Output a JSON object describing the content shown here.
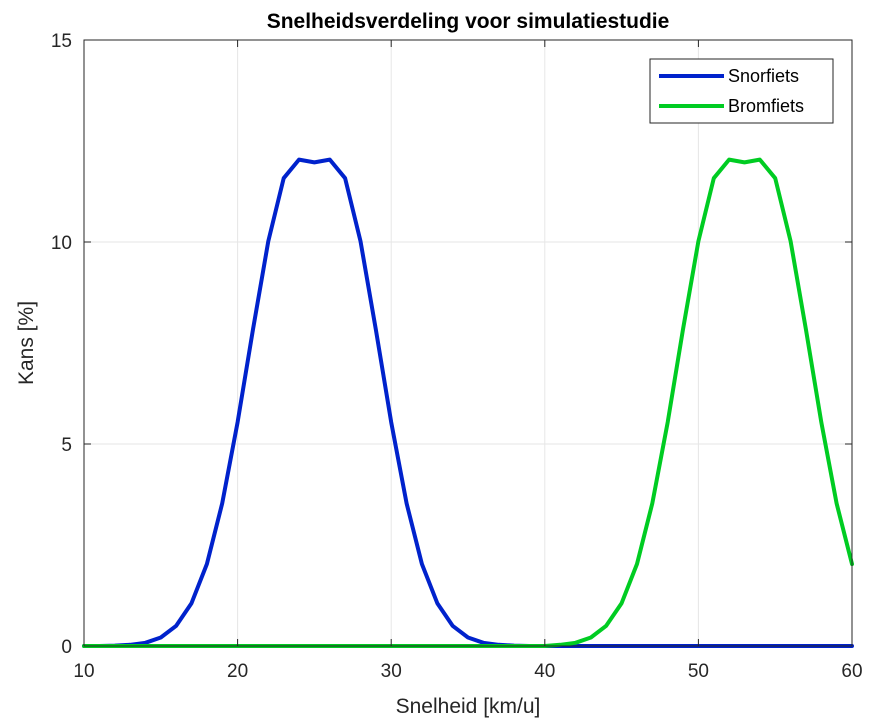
{
  "chart_data": {
    "type": "line",
    "title": "Snelheidsverdeling voor simulatiestudie",
    "xlabel": "Snelheid [km/u]",
    "ylabel": "Kans [%]",
    "xlim": [
      10,
      60
    ],
    "ylim": [
      0,
      15
    ],
    "xticks": [
      10,
      20,
      30,
      40,
      50,
      60
    ],
    "xtick_labels": [
      "10",
      "20",
      "30",
      "40",
      "50",
      "60"
    ],
    "yticks": [
      0,
      5,
      10,
      15
    ],
    "ytick_labels": [
      "0",
      "5",
      "10",
      "15"
    ],
    "grid": true,
    "legend_position": "top-right",
    "x": [
      10,
      11,
      12,
      13,
      14,
      15,
      16,
      17,
      18,
      19,
      20,
      21,
      22,
      23,
      24,
      25,
      26,
      27,
      28,
      29,
      30,
      31,
      32,
      33,
      34,
      35,
      36,
      37,
      38,
      39,
      40,
      41,
      42,
      43,
      44,
      45,
      46,
      47,
      48,
      49,
      50,
      51,
      52,
      53,
      54,
      55,
      56,
      57,
      58,
      59,
      60
    ],
    "series": [
      {
        "name": "Snorfiets",
        "color": "#0022cc",
        "values": [
          0.0,
          0.0,
          0.01,
          0.03,
          0.08,
          0.21,
          0.5,
          1.06,
          2.03,
          3.53,
          5.54,
          7.84,
          10.02,
          11.58,
          12.04,
          11.97,
          12.04,
          11.58,
          10.02,
          7.84,
          5.54,
          3.53,
          2.03,
          1.06,
          0.5,
          0.21,
          0.08,
          0.03,
          0.01,
          0.0,
          0.0,
          0.0,
          0.0,
          0.0,
          0.0,
          0.0,
          0.0,
          0.0,
          0.0,
          0.0,
          0.0,
          0.0,
          0.0,
          0.0,
          0.0,
          0.0,
          0.0,
          0.0,
          0.0,
          0.0,
          0.0
        ]
      },
      {
        "name": "Bromfiets",
        "color": "#00cc22",
        "values": [
          0.0,
          0.0,
          0.0,
          0.0,
          0.0,
          0.0,
          0.0,
          0.0,
          0.0,
          0.0,
          0.0,
          0.0,
          0.0,
          0.0,
          0.0,
          0.0,
          0.0,
          0.0,
          0.0,
          0.0,
          0.0,
          0.0,
          0.0,
          0.0,
          0.0,
          0.0,
          0.0,
          0.0,
          0.0,
          0.0,
          0.0,
          0.03,
          0.08,
          0.21,
          0.5,
          1.06,
          2.03,
          3.53,
          5.54,
          7.84,
          10.02,
          11.58,
          12.04,
          11.97,
          12.04,
          11.58,
          10.02,
          7.84,
          5.54,
          3.53,
          2.03
        ]
      }
    ]
  }
}
